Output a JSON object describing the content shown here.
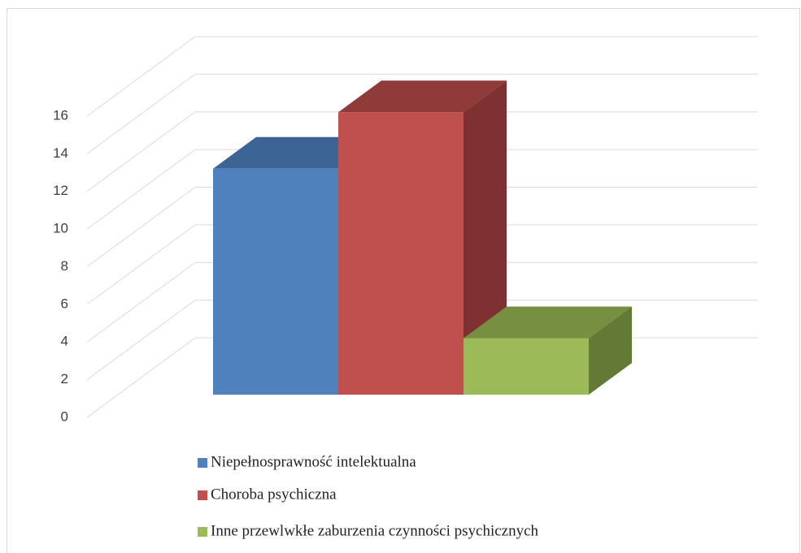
{
  "chart_data": {
    "type": "bar",
    "categories": [
      null
    ],
    "series": [
      {
        "name": "Niepełnosprawność intelektualna",
        "color": "#4f81bd",
        "top": "#3c6494",
        "side": "#345884",
        "values": [
          12
        ]
      },
      {
        "name": "Choroba psychiczna",
        "color": "#c0504d",
        "top": "#8f3b39",
        "side": "#7e3130",
        "values": [
          15
        ]
      },
      {
        "name": "Inne przewlwkłe zaburzenia czynności psychicznych",
        "color": "#9bbb59",
        "top": "#778f40",
        "side": "#647935",
        "values": [
          3
        ]
      }
    ],
    "ylim": [
      0,
      16
    ],
    "yticks": [
      0,
      2,
      4,
      6,
      8,
      10,
      12,
      14,
      16
    ],
    "grid": true,
    "legend": "bottom"
  }
}
